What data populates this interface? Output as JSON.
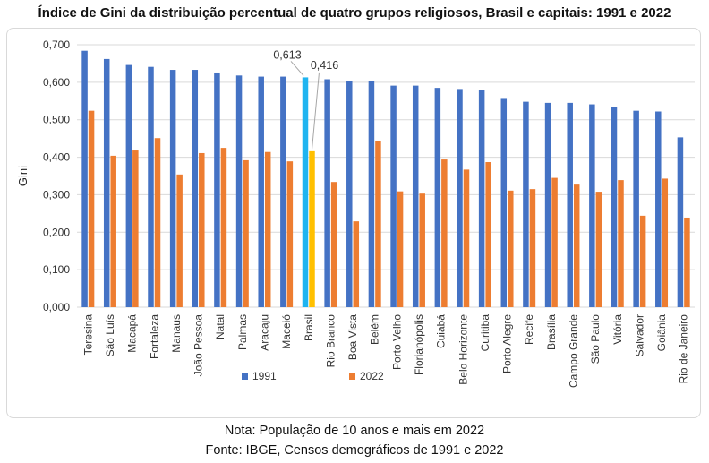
{
  "title": "Índice de Gini da distribuição percentual de quatro grupos religiosos, Brasil e capitais: 1991 e 2022",
  "note": "Nota: População de 10 anos e mais em 2022",
  "source": "Fonte: IBGE, Censos demográficos de 1991 e 2022",
  "chart_data": {
    "type": "bar",
    "categories": [
      "Teresina",
      "São Luís",
      "Macapá",
      "Fortaleza",
      "Manaus",
      "João Pessoa",
      "Natal",
      "Palmas",
      "Aracaju",
      "Maceió",
      "Brasil",
      "Rio Branco",
      "Boa Vista",
      "Belém",
      "Porto Velho",
      "Florianópolis",
      "Cuiabá",
      "Belo Horizonte",
      "Curitiba",
      "Porto Alegre",
      "Recife",
      "Brasília",
      "Campo Grande",
      "São Paulo",
      "Vitória",
      "Salvador",
      "Goiânia",
      "Rio de Janeiro"
    ],
    "series": [
      {
        "name": "1991",
        "color": "#4472C4",
        "values": [
          0.684,
          0.662,
          0.646,
          0.641,
          0.633,
          0.633,
          0.626,
          0.618,
          0.615,
          0.615,
          0.613,
          0.608,
          0.603,
          0.603,
          0.591,
          0.591,
          0.585,
          0.582,
          0.579,
          0.558,
          0.548,
          0.545,
          0.545,
          0.541,
          0.533,
          0.524,
          0.522,
          0.453
        ]
      },
      {
        "name": "2022",
        "color": "#ED7D31",
        "values": [
          0.524,
          0.404,
          0.418,
          0.451,
          0.354,
          0.411,
          0.425,
          0.392,
          0.414,
          0.389,
          0.416,
          0.334,
          0.229,
          0.442,
          0.309,
          0.303,
          0.394,
          0.367,
          0.387,
          0.311,
          0.315,
          0.345,
          0.327,
          0.308,
          0.339,
          0.244,
          0.343,
          0.239
        ]
      }
    ],
    "highlight": {
      "category": "Brasil",
      "colors": {
        "1991": "#1FB4F0",
        "2022": "#FFC000"
      }
    },
    "data_labels": [
      {
        "category": "Brasil",
        "series": "1991",
        "text": "0,613"
      },
      {
        "category": "Brasil",
        "series": "2022",
        "text": "0,416"
      }
    ],
    "ylabel": "Gini",
    "xlabel": "",
    "ylim": [
      0,
      0.7
    ],
    "yticks": [
      "0,000",
      "0,100",
      "0,200",
      "0,300",
      "0,400",
      "0,500",
      "0,600",
      "0,700"
    ],
    "grid": true,
    "legend": "bottom"
  }
}
